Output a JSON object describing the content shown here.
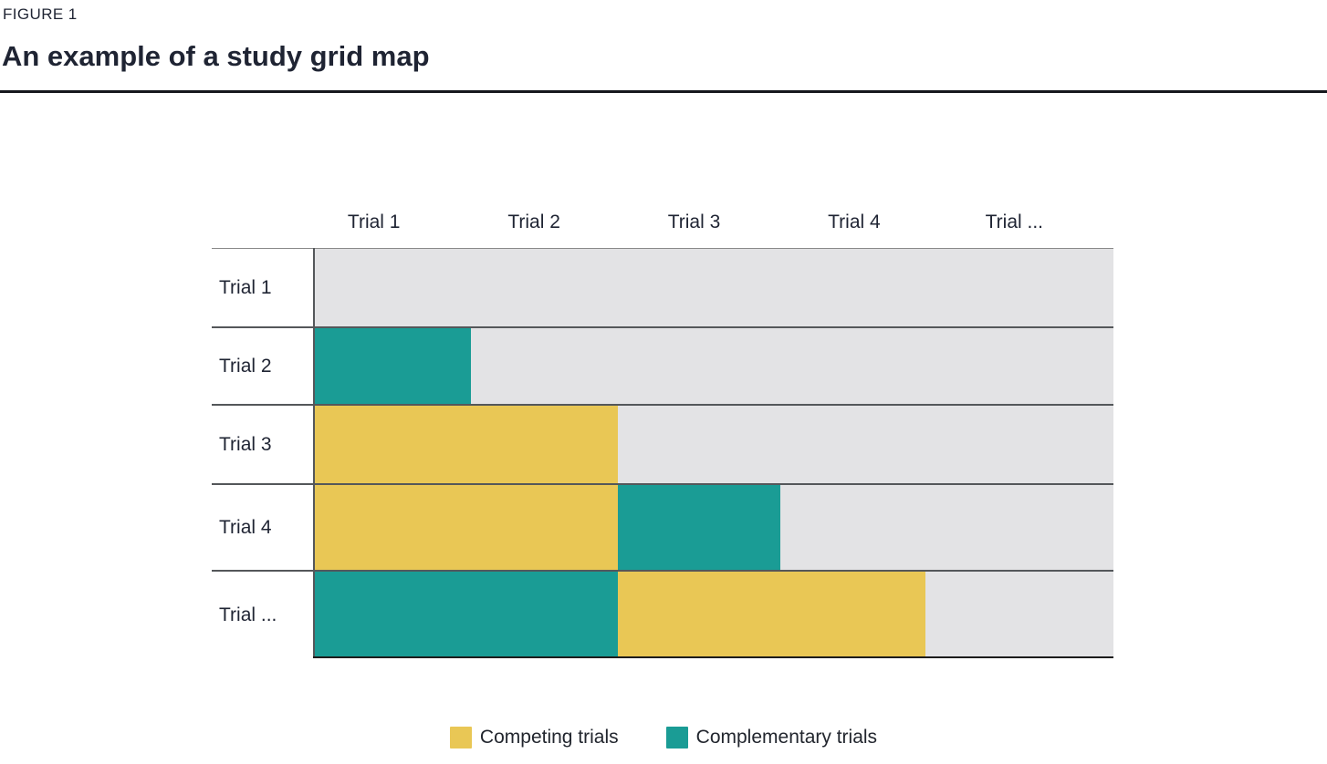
{
  "figure": {
    "label": "FIGURE 1",
    "title": "An example of a study grid map"
  },
  "chart_data": {
    "type": "heatmap",
    "title": "An example of a study grid map",
    "x_axis": {
      "position": "top",
      "labels": [
        "Trial 1",
        "Trial 2",
        "Trial 3",
        "Trial 4",
        "Trial ..."
      ]
    },
    "y_axis": {
      "position": "left",
      "labels": [
        "Trial 1",
        "Trial 2",
        "Trial 3",
        "Trial 4",
        "Trial ..."
      ]
    },
    "rows": [
      {
        "label": "Trial 1",
        "segments": []
      },
      {
        "label": "Trial 2",
        "segments": [
          {
            "category": "complementary",
            "start_frac": 0.0,
            "end_frac": 0.197
          }
        ]
      },
      {
        "label": "Trial 3",
        "segments": [
          {
            "category": "competing",
            "start_frac": 0.0,
            "end_frac": 0.381
          }
        ]
      },
      {
        "label": "Trial 4",
        "segments": [
          {
            "category": "competing",
            "start_frac": 0.0,
            "end_frac": 0.381
          },
          {
            "category": "complementary",
            "start_frac": 0.381,
            "end_frac": 0.584
          }
        ]
      },
      {
        "label": "Trial ...",
        "segments": [
          {
            "category": "complementary",
            "start_frac": 0.0,
            "end_frac": 0.381
          },
          {
            "category": "competing",
            "start_frac": 0.381,
            "end_frac": 0.765
          }
        ]
      }
    ],
    "legend": [
      {
        "key": "competing",
        "label": "Competing trials",
        "color": "#E9C755"
      },
      {
        "key": "complementary",
        "label": "Complementary trials",
        "color": "#1A9C95"
      }
    ],
    "colors": {
      "competing": "#E9C755",
      "complementary": "#1A9C95",
      "empty_cell": "#E3E3E5",
      "grid_line": "#54575A",
      "top_line": "#8A8A8A",
      "bottom_line": "#1C1C1C",
      "text": "#1F2433",
      "title_rule": "#16181D"
    },
    "grid": true
  }
}
